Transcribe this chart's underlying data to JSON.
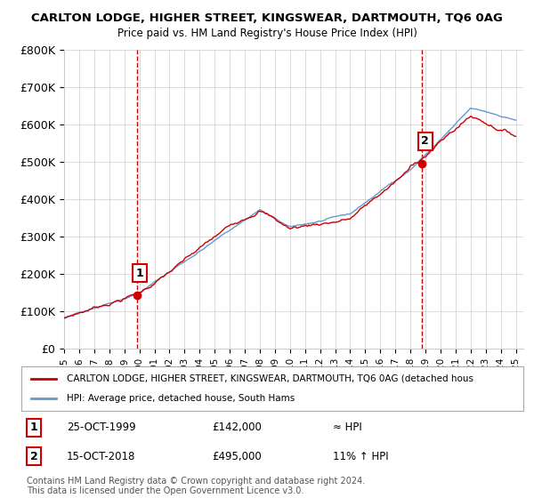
{
  "title": "CARLTON LODGE, HIGHER STREET, KINGSWEAR, DARTMOUTH, TQ6 0AG",
  "subtitle": "Price paid vs. HM Land Registry's House Price Index (HPI)",
  "ylim": [
    0,
    800000
  ],
  "yticks": [
    0,
    100000,
    200000,
    300000,
    400000,
    500000,
    600000,
    700000,
    800000
  ],
  "ytick_labels": [
    "£0",
    "£100K",
    "£200K",
    "£300K",
    "£400K",
    "£500K",
    "£600K",
    "£700K",
    "£800K"
  ],
  "xlim_start": 1995.0,
  "xlim_end": 2025.5,
  "xlabel_years": [
    "1995",
    "1996",
    "1997",
    "1998",
    "1999",
    "2000",
    "2001",
    "2002",
    "2003",
    "2004",
    "2005",
    "2006",
    "2007",
    "2008",
    "2009",
    "2010",
    "2011",
    "2012",
    "2013",
    "2014",
    "2015",
    "2016",
    "2017",
    "2018",
    "2019",
    "2020",
    "2021",
    "2022",
    "2023",
    "2024",
    "2025"
  ],
  "sale1_x": 1999.82,
  "sale1_y": 142000,
  "sale1_label": "1",
  "sale1_date": "25-OCT-1999",
  "sale1_price": "£142,000",
  "sale1_hpi": "≈ HPI",
  "sale2_x": 2018.79,
  "sale2_y": 495000,
  "sale2_label": "2",
  "sale2_date": "15-OCT-2018",
  "sale2_price": "£495,000",
  "sale2_hpi": "11% ↑ HPI",
  "line_color_red": "#cc0000",
  "line_color_blue": "#6699cc",
  "vline_color": "#cc0000",
  "bg_color": "#ffffff",
  "grid_color": "#cccccc",
  "legend_line1": "CARLTON LODGE, HIGHER STREET, KINGSWEAR, DARTMOUTH, TQ6 0AG (detached hous",
  "legend_line2": "HPI: Average price, detached house, South Hams",
  "footer": "Contains HM Land Registry data © Crown copyright and database right 2024.\nThis data is licensed under the Open Government Licence v3.0."
}
